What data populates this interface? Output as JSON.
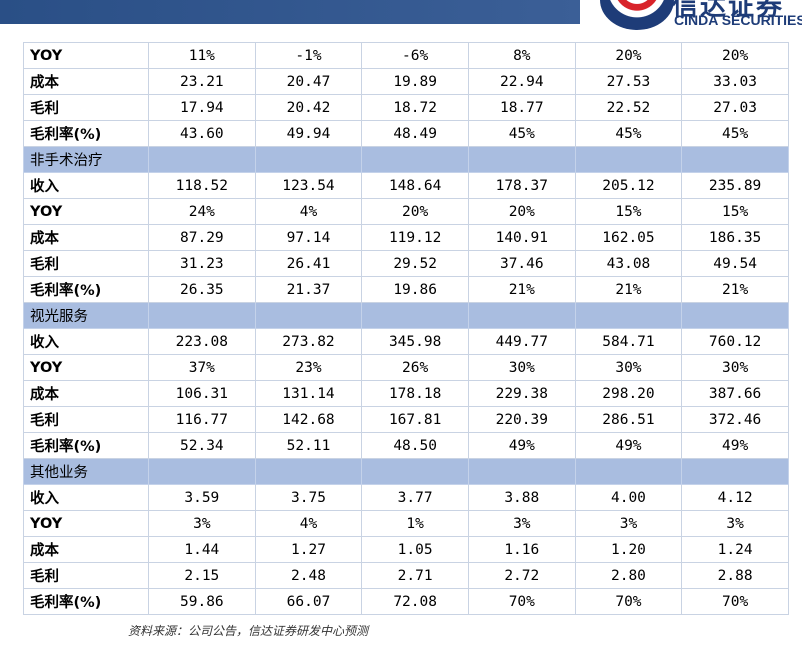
{
  "logo": {
    "cn": "信达证券",
    "en": "CINDA SECURITIES"
  },
  "rows": [
    {
      "type": "data",
      "label": "YOY",
      "values": [
        "11%",
        "-1%",
        "-6%",
        "8%",
        "20%",
        "20%"
      ]
    },
    {
      "type": "data",
      "label": "成本",
      "values": [
        "23.21",
        "20.47",
        "19.89",
        "22.94",
        "27.53",
        "33.03"
      ]
    },
    {
      "type": "data",
      "label": "毛利",
      "values": [
        "17.94",
        "20.42",
        "18.72",
        "18.77",
        "22.52",
        "27.03"
      ]
    },
    {
      "type": "data",
      "label": "毛利率(%)",
      "values": [
        "43.60",
        "49.94",
        "48.49",
        "45%",
        "45%",
        "45%"
      ]
    },
    {
      "type": "section",
      "label": "非手术治疗"
    },
    {
      "type": "data",
      "label": "收入",
      "values": [
        "118.52",
        "123.54",
        "148.64",
        "178.37",
        "205.12",
        "235.89"
      ]
    },
    {
      "type": "data",
      "label": "YOY",
      "values": [
        "24%",
        "4%",
        "20%",
        "20%",
        "15%",
        "15%"
      ]
    },
    {
      "type": "data",
      "label": "成本",
      "values": [
        "87.29",
        "97.14",
        "119.12",
        "140.91",
        "162.05",
        "186.35"
      ]
    },
    {
      "type": "data",
      "label": "毛利",
      "values": [
        "31.23",
        "26.41",
        "29.52",
        "37.46",
        "43.08",
        "49.54"
      ]
    },
    {
      "type": "data",
      "label": "毛利率(%)",
      "values": [
        "26.35",
        "21.37",
        "19.86",
        "21%",
        "21%",
        "21%"
      ]
    },
    {
      "type": "section",
      "label": "视光服务"
    },
    {
      "type": "data",
      "label": "收入",
      "values": [
        "223.08",
        "273.82",
        "345.98",
        "449.77",
        "584.71",
        "760.12"
      ]
    },
    {
      "type": "data",
      "label": "YOY",
      "values": [
        "37%",
        "23%",
        "26%",
        "30%",
        "30%",
        "30%"
      ]
    },
    {
      "type": "data",
      "label": "成本",
      "values": [
        "106.31",
        "131.14",
        "178.18",
        "229.38",
        "298.20",
        "387.66"
      ]
    },
    {
      "type": "data",
      "label": "毛利",
      "values": [
        "116.77",
        "142.68",
        "167.81",
        "220.39",
        "286.51",
        "372.46"
      ]
    },
    {
      "type": "data",
      "label": "毛利率(%)",
      "values": [
        "52.34",
        "52.11",
        "48.50",
        "49%",
        "49%",
        "49%"
      ]
    },
    {
      "type": "section",
      "label": "其他业务"
    },
    {
      "type": "data",
      "label": "收入",
      "values": [
        "3.59",
        "3.75",
        "3.77",
        "3.88",
        "4.00",
        "4.12"
      ]
    },
    {
      "type": "data",
      "label": "YOY",
      "values": [
        "3%",
        "4%",
        "1%",
        "3%",
        "3%",
        "3%"
      ]
    },
    {
      "type": "data",
      "label": "成本",
      "values": [
        "1.44",
        "1.27",
        "1.05",
        "1.16",
        "1.20",
        "1.24"
      ]
    },
    {
      "type": "data",
      "label": "毛利",
      "values": [
        "2.15",
        "2.48",
        "2.71",
        "2.72",
        "2.80",
        "2.88"
      ]
    },
    {
      "type": "data",
      "label": "毛利率(%)",
      "values": [
        "59.86",
        "66.07",
        "72.08",
        "70%",
        "70%",
        "70%"
      ]
    }
  ],
  "source": "资料来源：公司公告，信达证券研发中心预测"
}
